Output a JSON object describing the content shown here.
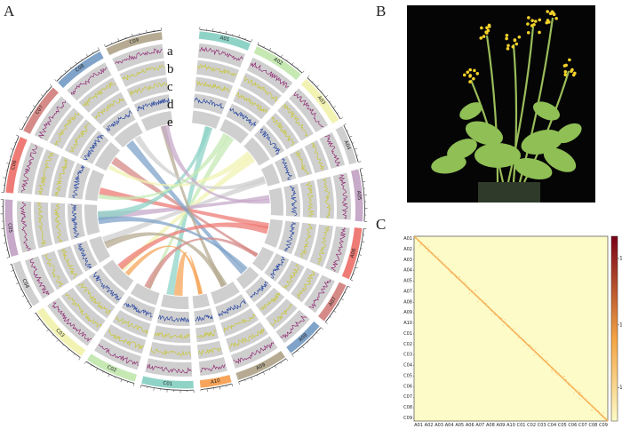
{
  "panels": {
    "a": "A",
    "b": "B",
    "c": "C"
  },
  "track_letters": [
    "a",
    "b",
    "c",
    "d",
    "e"
  ],
  "chromosomes": [
    {
      "name": "A01",
      "color": "#8fd3c7"
    },
    {
      "name": "A02",
      "color": "#c6e9b4"
    },
    {
      "name": "A03",
      "color": "#f2f3b3"
    },
    {
      "name": "A04",
      "color": "#cfcfcf"
    },
    {
      "name": "A05",
      "color": "#c7a9c9"
    },
    {
      "name": "A06",
      "color": "#ee7b75"
    },
    {
      "name": "A07",
      "color": "#d58a87"
    },
    {
      "name": "A08",
      "color": "#7fa3c9"
    },
    {
      "name": "A09",
      "color": "#b6ab92"
    },
    {
      "name": "A10",
      "color": "#f6a55a"
    },
    {
      "name": "C01",
      "color": "#8fd3c7"
    },
    {
      "name": "C02",
      "color": "#c6e9b4"
    },
    {
      "name": "C03",
      "color": "#f2f3b3"
    },
    {
      "name": "C04",
      "color": "#cfcfcf"
    },
    {
      "name": "C05",
      "color": "#c7a9c9"
    },
    {
      "name": "C06",
      "color": "#ee7b75"
    },
    {
      "name": "C07",
      "color": "#d58a87"
    },
    {
      "name": "C08",
      "color": "#7fa3c9"
    },
    {
      "name": "C09",
      "color": "#b6ab92"
    }
  ],
  "heatmap": {
    "y_labels": [
      "A01",
      "A02",
      "A03",
      "A04",
      "A05",
      "A07",
      "A08",
      "A09",
      "A10",
      "C01",
      "C02",
      "C03",
      "C04",
      "C05",
      "C06",
      "C07",
      "C08",
      "C09"
    ],
    "x_labels": [
      "A01",
      "A02",
      "A03",
      "A04",
      "A05",
      "A06",
      "A07",
      "A08",
      "A09",
      "A10",
      "C01",
      "C02",
      "C03",
      "C04",
      "C05",
      "C06",
      "C07",
      "C08",
      "C09"
    ],
    "colorbar_ticks": [
      "10⁴",
      "10³",
      "10²"
    ],
    "colors": {
      "low": "#fdfbc7",
      "mid": "#f4a342",
      "high": "#7a0018"
    }
  }
}
